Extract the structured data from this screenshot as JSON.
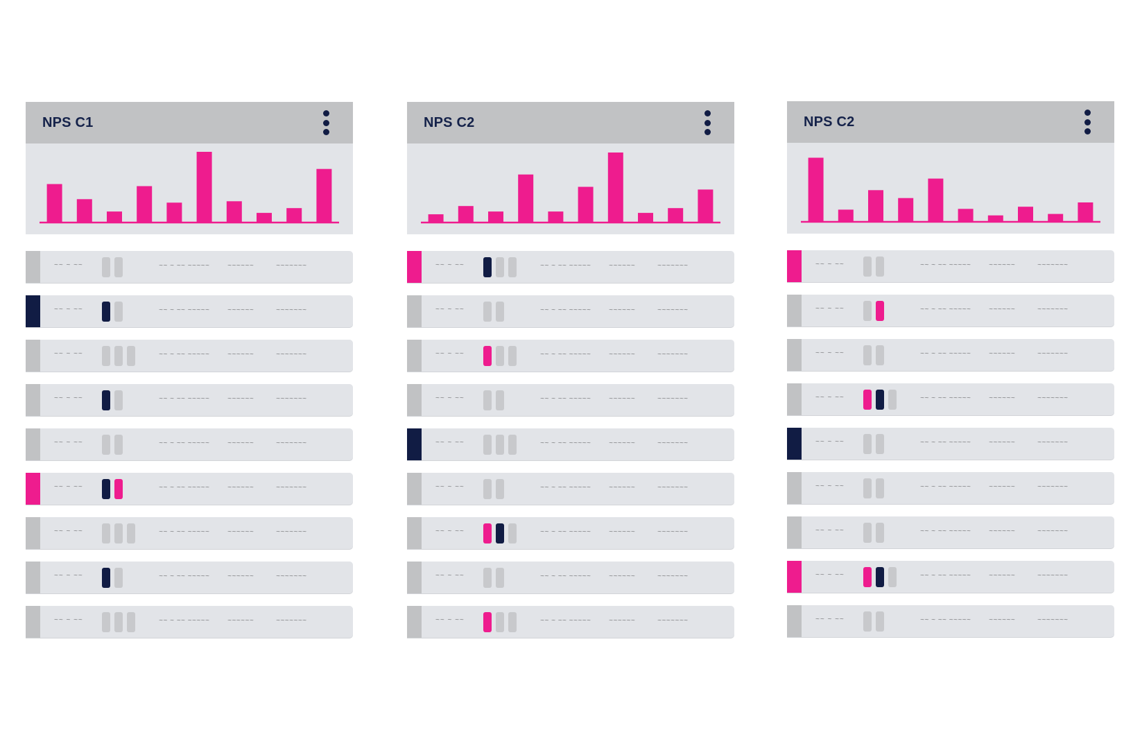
{
  "colors": {
    "marker": {
      "g": "#c1c2c4",
      "n": "#111c44",
      "p": "#ee1c8e"
    },
    "slot": {
      "g": "#c8c9cc",
      "n": "#111c44",
      "p": "#ee1c8e"
    },
    "bar": "#ee1c8e"
  },
  "panels": [
    {
      "title": "NPS C1",
      "chart_data": {
        "type": "bar",
        "values": [
          55,
          33,
          15,
          52,
          28,
          102,
          30,
          13,
          20,
          77
        ],
        "ylim": [
          0,
          105
        ]
      },
      "rows": [
        {
          "marker": "g",
          "id": "~~ ~ ~~",
          "slots": [
            "g",
            "g"
          ],
          "t1": "~~ ~ ~~ ~~~~~",
          "t2": "~~~~~~",
          "t3": "~~~~~~~"
        },
        {
          "marker": "n",
          "id": "~~ ~ ~~",
          "slots": [
            "n",
            "g"
          ],
          "t1": "~~ ~ ~~ ~~~~~",
          "t2": "~~~~~~",
          "t3": "~~~~~~~"
        },
        {
          "marker": "g",
          "id": "~~ ~ ~~",
          "slots": [
            "g",
            "g",
            "g"
          ],
          "t1": "~~ ~ ~~ ~~~~~",
          "t2": "~~~~~~",
          "t3": "~~~~~~~"
        },
        {
          "marker": "g",
          "id": "~~ ~ ~~",
          "slots": [
            "n",
            "g"
          ],
          "t1": "~~ ~ ~~ ~~~~~",
          "t2": "~~~~~~",
          "t3": "~~~~~~~"
        },
        {
          "marker": "g",
          "id": "~~ ~ ~~",
          "slots": [
            "g",
            "g"
          ],
          "t1": "~~ ~ ~~ ~~~~~",
          "t2": "~~~~~~",
          "t3": "~~~~~~~"
        },
        {
          "marker": "p",
          "id": "~~ ~ ~~",
          "slots": [
            "n",
            "p"
          ],
          "t1": "~~ ~ ~~ ~~~~~",
          "t2": "~~~~~~",
          "t3": "~~~~~~~"
        },
        {
          "marker": "g",
          "id": "~~ ~ ~~",
          "slots": [
            "g",
            "g",
            "g"
          ],
          "t1": "~~ ~ ~~ ~~~~~",
          "t2": "~~~~~~",
          "t3": "~~~~~~~"
        },
        {
          "marker": "g",
          "id": "~~ ~ ~~",
          "slots": [
            "n",
            "g"
          ],
          "t1": "~~ ~ ~~ ~~~~~",
          "t2": "~~~~~~",
          "t3": "~~~~~~~"
        },
        {
          "marker": "g",
          "id": "~~ ~ ~~",
          "slots": [
            "g",
            "g",
            "g"
          ],
          "t1": "~~ ~ ~~ ~~~~~",
          "t2": "~~~~~~",
          "t3": "~~~~~~~"
        }
      ]
    },
    {
      "title": "NPS C2",
      "chart_data": {
        "type": "bar",
        "values": [
          11,
          23,
          15,
          69,
          15,
          51,
          101,
          13,
          20,
          47
        ],
        "ylim": [
          0,
          105
        ]
      },
      "rows": [
        {
          "marker": "p",
          "id": "~~ ~ ~~",
          "slots": [
            "n",
            "g",
            "g"
          ],
          "t1": "~~ ~ ~~ ~~~~~",
          "t2": "~~~~~~",
          "t3": "~~~~~~~"
        },
        {
          "marker": "g",
          "id": "~~ ~ ~~",
          "slots": [
            "g",
            "g"
          ],
          "t1": "~~ ~ ~~ ~~~~~",
          "t2": "~~~~~~",
          "t3": "~~~~~~~"
        },
        {
          "marker": "g",
          "id": "~~ ~ ~~",
          "slots": [
            "p",
            "g",
            "g"
          ],
          "t1": "~~ ~ ~~ ~~~~~",
          "t2": "~~~~~~",
          "t3": "~~~~~~~"
        },
        {
          "marker": "g",
          "id": "~~ ~ ~~",
          "slots": [
            "g",
            "g"
          ],
          "t1": "~~ ~ ~~ ~~~~~",
          "t2": "~~~~~~",
          "t3": "~~~~~~~"
        },
        {
          "marker": "n",
          "id": "~~ ~ ~~",
          "slots": [
            "g",
            "g",
            "g"
          ],
          "t1": "~~ ~ ~~ ~~~~~",
          "t2": "~~~~~~",
          "t3": "~~~~~~~"
        },
        {
          "marker": "g",
          "id": "~~ ~ ~~",
          "slots": [
            "g",
            "g"
          ],
          "t1": "~~ ~ ~~ ~~~~~",
          "t2": "~~~~~~",
          "t3": "~~~~~~~"
        },
        {
          "marker": "g",
          "id": "~~ ~ ~~",
          "slots": [
            "p",
            "n",
            "g"
          ],
          "t1": "~~ ~ ~~ ~~~~~",
          "t2": "~~~~~~",
          "t3": "~~~~~~~"
        },
        {
          "marker": "g",
          "id": "~~ ~ ~~",
          "slots": [
            "g",
            "g"
          ],
          "t1": "~~ ~ ~~ ~~~~~",
          "t2": "~~~~~~",
          "t3": "~~~~~~~"
        },
        {
          "marker": "g",
          "id": "~~ ~ ~~",
          "slots": [
            "p",
            "g",
            "g"
          ],
          "t1": "~~ ~ ~~ ~~~~~",
          "t2": "~~~~~~",
          "t3": "~~~~~~~"
        }
      ]
    },
    {
      "title": "NPS C2",
      "chart_data": {
        "type": "bar",
        "values": [
          88,
          16,
          43,
          32,
          59,
          17,
          8,
          20,
          10,
          26
        ],
        "ylim": [
          0,
          100
        ]
      },
      "rows": [
        {
          "marker": "p",
          "id": "~~ ~ ~~",
          "slots": [
            "g",
            "g"
          ],
          "t1": "~~ ~ ~~ ~~~~~",
          "t2": "~~~~~~",
          "t3": "~~~~~~~"
        },
        {
          "marker": "g",
          "id": "~~ ~ ~~",
          "slots": [
            "g",
            "p"
          ],
          "t1": "~~ ~ ~~ ~~~~~",
          "t2": "~~~~~~",
          "t3": "~~~~~~~"
        },
        {
          "marker": "g",
          "id": "~~ ~ ~~",
          "slots": [
            "g",
            "g"
          ],
          "t1": "~~ ~ ~~ ~~~~~",
          "t2": "~~~~~~",
          "t3": "~~~~~~~"
        },
        {
          "marker": "g",
          "id": "~~ ~ ~~",
          "slots": [
            "p",
            "n",
            "g"
          ],
          "t1": "~~ ~ ~~ ~~~~~",
          "t2": "~~~~~~",
          "t3": "~~~~~~~"
        },
        {
          "marker": "n",
          "id": "~~ ~ ~~",
          "slots": [
            "g",
            "g"
          ],
          "t1": "~~ ~ ~~ ~~~~~",
          "t2": "~~~~~~",
          "t3": "~~~~~~~"
        },
        {
          "marker": "g",
          "id": "~~ ~ ~~",
          "slots": [
            "g",
            "g"
          ],
          "t1": "~~ ~ ~~ ~~~~~",
          "t2": "~~~~~~",
          "t3": "~~~~~~~"
        },
        {
          "marker": "g",
          "id": "~~ ~ ~~",
          "slots": [
            "g",
            "g"
          ],
          "t1": "~~ ~ ~~ ~~~~~",
          "t2": "~~~~~~",
          "t3": "~~~~~~~"
        },
        {
          "marker": "p",
          "id": "~~ ~ ~~",
          "slots": [
            "p",
            "n",
            "g"
          ],
          "t1": "~~ ~ ~~ ~~~~~",
          "t2": "~~~~~~",
          "t3": "~~~~~~~"
        },
        {
          "marker": "g",
          "id": "~~ ~ ~~",
          "slots": [
            "g",
            "g"
          ],
          "t1": "~~ ~ ~~ ~~~~~",
          "t2": "~~~~~~",
          "t3": "~~~~~~~"
        }
      ]
    }
  ]
}
